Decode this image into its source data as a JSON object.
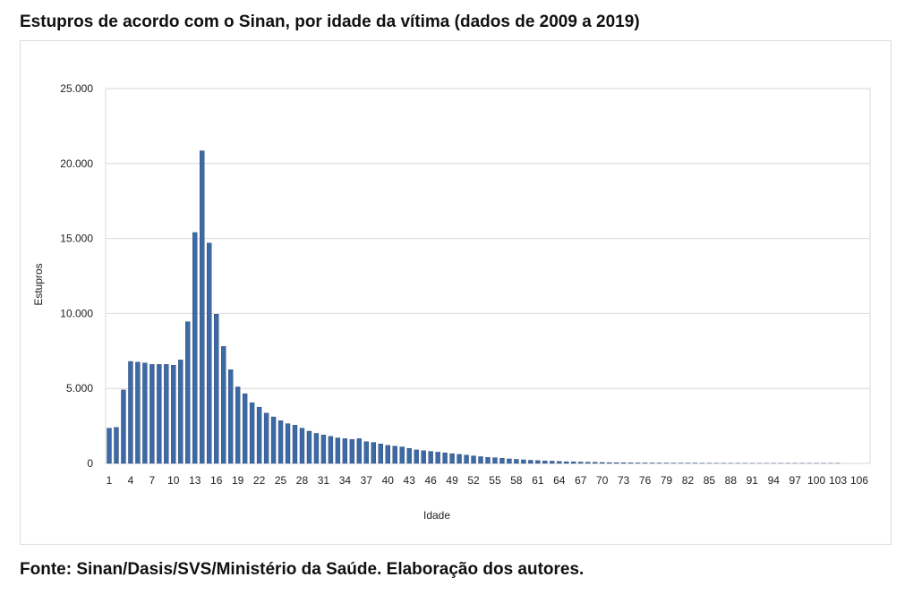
{
  "header": {
    "title": "Estupros de acordo com o Sinan, por idade da vítima (dados de 2009 a 2019)"
  },
  "footer": {
    "source": "Fonte: Sinan/Dasis/SVS/Ministério da Saúde. Elaboração dos autores."
  },
  "colors": {
    "bar": "#3d6aa6",
    "bar_edge": "#1f3f6b",
    "grid": "#d9d9d9",
    "axis": "#888888"
  },
  "chart_data": {
    "type": "bar",
    "title": "",
    "xlabel": "Idade",
    "ylabel": "Estupros",
    "ylim": [
      0,
      25000
    ],
    "yticks": [
      0,
      5000,
      10000,
      15000,
      20000,
      25000
    ],
    "ytick_labels": [
      "0",
      "5.000",
      "10.000",
      "15.000",
      "20.000",
      "25.000"
    ],
    "xtick_labels": [
      "1",
      "4",
      "7",
      "10",
      "13",
      "16",
      "19",
      "22",
      "25",
      "28",
      "31",
      "34",
      "37",
      "40",
      "43",
      "46",
      "49",
      "52",
      "55",
      "58",
      "61",
      "64",
      "67",
      "70",
      "73",
      "76",
      "79",
      "82",
      "85",
      "88",
      "91",
      "94",
      "97",
      "100",
      "103",
      "106"
    ],
    "grid": true,
    "legend": "none",
    "categories": [
      "1",
      "2",
      "3",
      "4",
      "5",
      "6",
      "7",
      "8",
      "9",
      "10",
      "11",
      "12",
      "13",
      "14",
      "15",
      "16",
      "17",
      "18",
      "19",
      "20",
      "21",
      "22",
      "23",
      "24",
      "25",
      "26",
      "27",
      "28",
      "29",
      "30",
      "31",
      "32",
      "33",
      "34",
      "35",
      "36",
      "37",
      "38",
      "39",
      "40",
      "41",
      "42",
      "43",
      "44",
      "45",
      "46",
      "47",
      "48",
      "49",
      "50",
      "51",
      "52",
      "53",
      "54",
      "55",
      "56",
      "57",
      "58",
      "59",
      "60",
      "61",
      "62",
      "63",
      "64",
      "65",
      "66",
      "67",
      "68",
      "69",
      "70",
      "71",
      "72",
      "73",
      "74",
      "75",
      "76",
      "77",
      "78",
      "79",
      "80",
      "81",
      "82",
      "83",
      "84",
      "85",
      "86",
      "87",
      "88",
      "89",
      "90",
      "91",
      "92",
      "93",
      "94",
      "95",
      "96",
      "97",
      "98",
      "99",
      "100",
      "101",
      "102",
      "103",
      "104",
      "105",
      "106",
      "107"
    ],
    "values": [
      2350,
      2400,
      4900,
      6800,
      6750,
      6700,
      6600,
      6600,
      6600,
      6550,
      6900,
      9450,
      15400,
      20850,
      14700,
      9950,
      7800,
      6250,
      5100,
      4650,
      4050,
      3750,
      3350,
      3100,
      2850,
      2650,
      2550,
      2350,
      2150,
      2000,
      1900,
      1800,
      1700,
      1650,
      1600,
      1650,
      1450,
      1400,
      1300,
      1200,
      1150,
      1100,
      1000,
      900,
      850,
      800,
      750,
      700,
      650,
      600,
      550,
      500,
      450,
      400,
      380,
      340,
      300,
      270,
      240,
      210,
      190,
      170,
      150,
      130,
      110,
      100,
      90,
      80,
      70,
      60,
      50,
      45,
      40,
      35,
      30,
      28,
      25,
      22,
      20,
      18,
      16,
      14,
      12,
      10,
      9,
      8,
      7,
      6,
      5,
      4,
      3,
      3,
      2,
      2,
      2,
      1,
      1,
      1,
      1,
      1,
      1,
      1,
      1,
      0,
      0,
      0,
      0
    ]
  }
}
